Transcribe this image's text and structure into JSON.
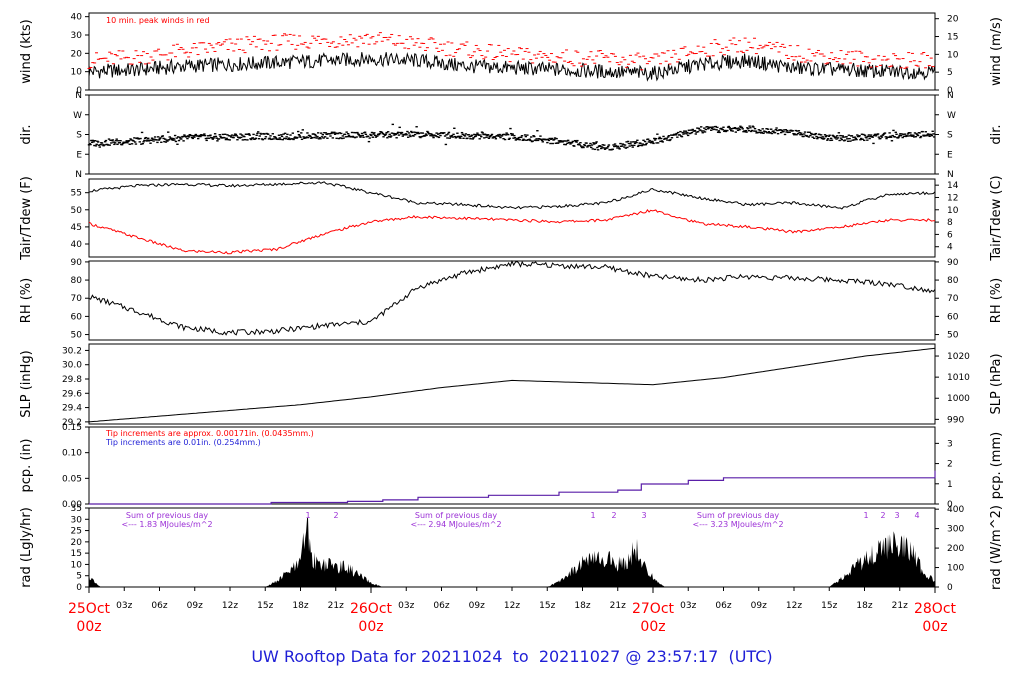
{
  "caption": "UW Rooftop Data for 20211024  to  20211027 @ 23:57:17  (UTC)",
  "colors": {
    "series": "#000000",
    "peak": "#ff0000",
    "dew": "#ff0000",
    "precip": "#5a1fa8",
    "note_blue": "#1f1fd6",
    "solar_note": "#9b30d6",
    "date": "#ff0000",
    "caption": "#1f1fd6"
  },
  "chart_data": [
    {
      "id": "wind",
      "type": "line",
      "ylabel": "wind (kts)",
      "ylabel_right": "wind (m/s)",
      "ylim": [
        0,
        42
      ],
      "yticks": [
        0,
        10,
        20,
        30,
        40
      ],
      "right_ylim": [
        0,
        21.6
      ],
      "right_yticks": [
        0,
        5,
        10,
        15,
        20
      ],
      "annotation": "10 min. peak winds in red",
      "x_hours": [
        0,
        4,
        8,
        12,
        16,
        20,
        24,
        28,
        32,
        36,
        40,
        44,
        48,
        52,
        56,
        60,
        64,
        68,
        72
      ],
      "series": [
        {
          "values": [
            10,
            11,
            13,
            14,
            15,
            16,
            17,
            16,
            13,
            12,
            11,
            10,
            9,
            14,
            16,
            12,
            11,
            10,
            10
          ]
        },
        {
          "values": [
            16,
            18,
            21,
            24,
            26,
            27,
            28,
            25,
            22,
            19,
            18,
            17,
            15,
            22,
            25,
            20,
            18,
            16,
            16
          ]
        }
      ]
    },
    {
      "id": "dir",
      "type": "scatter",
      "ylabel": "dir.",
      "ylabel_right": "dir.",
      "ylim": [
        0,
        360
      ],
      "yticks": [
        0,
        90,
        180,
        270,
        360
      ],
      "ytick_labels": [
        "N",
        "E",
        "S",
        "W",
        "N"
      ],
      "x_hours": [
        0,
        4,
        8,
        12,
        16,
        20,
        24,
        28,
        32,
        36,
        40,
        44,
        48,
        52,
        56,
        60,
        64,
        68,
        72
      ],
      "values": [
        140,
        150,
        165,
        170,
        170,
        175,
        178,
        180,
        175,
        170,
        150,
        120,
        150,
        200,
        205,
        190,
        160,
        175,
        180
      ]
    },
    {
      "id": "temp",
      "type": "line",
      "ylabel": "Tair/Tdew (F)",
      "ylabel_right": "Tair/Tdew (C)",
      "ylim": [
        36.2,
        59
      ],
      "yticks": [
        40,
        45,
        50,
        55
      ],
      "right_ylim": [
        2.33,
        15
      ],
      "right_yticks": [
        4,
        6,
        8,
        10,
        12,
        14
      ],
      "x_hours": [
        0,
        4,
        8,
        12,
        16,
        20,
        24,
        28,
        32,
        36,
        40,
        44,
        48,
        52,
        56,
        60,
        64,
        68,
        72
      ],
      "series": [
        {
          "values": [
            55.5,
            57,
            57.5,
            57,
            57.5,
            58,
            55,
            52,
            51.5,
            50.5,
            51,
            52,
            56,
            53.5,
            51.5,
            52,
            50.5,
            54.5,
            55
          ]
        },
        {
          "values": [
            46,
            42,
            38,
            37.5,
            38.5,
            43,
            46.5,
            48,
            47.5,
            47,
            46.5,
            47,
            50,
            46,
            45,
            43.5,
            45,
            47,
            47
          ]
        }
      ]
    },
    {
      "id": "rh",
      "type": "line",
      "ylabel": "RH (%)",
      "ylabel_right": "RH (%)",
      "ylim": [
        47,
        90.5
      ],
      "yticks": [
        50,
        60,
        70,
        80,
        90
      ],
      "x_hours": [
        0,
        4,
        8,
        12,
        16,
        20,
        24,
        28,
        32,
        36,
        40,
        44,
        48,
        52,
        56,
        60,
        64,
        68,
        72
      ],
      "values": [
        71,
        63,
        54,
        51,
        52,
        55,
        57,
        76,
        84,
        89,
        88,
        87,
        82,
        80,
        82,
        81,
        80,
        78,
        74
      ]
    },
    {
      "id": "slp",
      "type": "line",
      "ylabel": "SLP (inHg)",
      "ylabel_right": "SLP (hPa)",
      "ylim": [
        29.17,
        30.29
      ],
      "yticks": [
        29.2,
        29.4,
        29.6,
        29.8,
        30.0,
        30.2
      ],
      "right_ylim": [
        987.8,
        1025.7
      ],
      "right_yticks": [
        990,
        1000,
        1010,
        1020
      ],
      "x_hours": [
        0,
        6,
        12,
        18,
        24,
        30,
        36,
        42,
        48,
        54,
        60,
        66,
        72
      ],
      "values": [
        29.2,
        29.28,
        29.36,
        29.44,
        29.55,
        29.68,
        29.78,
        29.75,
        29.72,
        29.82,
        29.97,
        30.12,
        30.23
      ]
    },
    {
      "id": "pcp",
      "type": "line",
      "ylabel": "pcp. (in)",
      "ylabel_right": "pcp. (mm)",
      "ylim": [
        0,
        0.15
      ],
      "yticks": [
        0.0,
        0.05,
        0.1,
        0.15
      ],
      "right_ylim": [
        0,
        3.81
      ],
      "right_yticks": [
        0,
        1,
        2,
        3
      ],
      "notes": [
        "Tip increments are approx. 0.00171in. (0.0435mm.)",
        "Tip increments are 0.01in. (0.254mm.)"
      ],
      "steps": [
        [
          0,
          0
        ],
        [
          15.5,
          0.003
        ],
        [
          22,
          0.005
        ],
        [
          25,
          0.008
        ],
        [
          28,
          0.013
        ],
        [
          34,
          0.017
        ],
        [
          40,
          0.023
        ],
        [
          45,
          0.027
        ],
        [
          47,
          0.039
        ],
        [
          51,
          0.046
        ],
        [
          54,
          0.051
        ],
        [
          72,
          0.065
        ]
      ]
    },
    {
      "id": "rad",
      "type": "area",
      "ylabel": "rad (Lgly/hr)",
      "ylabel_right": "rad (W/m^2)",
      "ylim": [
        0,
        35
      ],
      "yticks": [
        0,
        5,
        10,
        15,
        20,
        25,
        30,
        35
      ],
      "right_ylim": [
        0,
        406
      ],
      "right_yticks": [
        0,
        100,
        200,
        300,
        400
      ],
      "summaries": [
        {
          "line1": "Sum of previous day",
          "line2": "<--- 1.83 MJoules/m^2"
        },
        {
          "line1": "Sum of previous day",
          "line2": "<--- 2.94 MJoules/m^2"
        },
        {
          "line1": "Sum of previous day",
          "line2": "<--- 3.23 MJoules/m^2"
        }
      ],
      "markers": [
        "1",
        "2",
        "1",
        "2",
        "3",
        "1",
        "2",
        "3",
        "4"
      ],
      "x_hours": [
        0,
        0.5,
        1,
        15,
        16,
        17,
        18,
        18.5,
        19,
        20,
        21,
        22,
        23,
        24,
        25,
        39,
        40,
        41,
        42,
        43,
        44,
        45,
        46,
        46.5,
        47,
        48,
        49,
        63,
        64,
        65,
        66,
        67,
        68,
        69,
        70,
        71,
        72
      ],
      "values": [
        6,
        2,
        0,
        0,
        3,
        8,
        12,
        33,
        14,
        12,
        11,
        10,
        6,
        2,
        0,
        0,
        3,
        8,
        13,
        14,
        15,
        12,
        14,
        22,
        12,
        5,
        0,
        0,
        4,
        10,
        14,
        18,
        22,
        22,
        18,
        8,
        3
      ]
    }
  ],
  "x_axis": {
    "hour_labels": [
      "03z",
      "06z",
      "09z",
      "12z",
      "15z",
      "18z",
      "21z",
      "03z",
      "06z",
      "09z",
      "12z",
      "15z",
      "18z",
      "21z",
      "03z",
      "06z",
      "09z",
      "12z",
      "15z",
      "18z",
      "21z"
    ],
    "day_labels": [
      {
        "date": "25Oct",
        "time": "00z"
      },
      {
        "date": "26Oct",
        "time": "00z"
      },
      {
        "date": "27Oct",
        "time": "00z"
      },
      {
        "date": "28Oct",
        "time": "00z"
      }
    ]
  }
}
